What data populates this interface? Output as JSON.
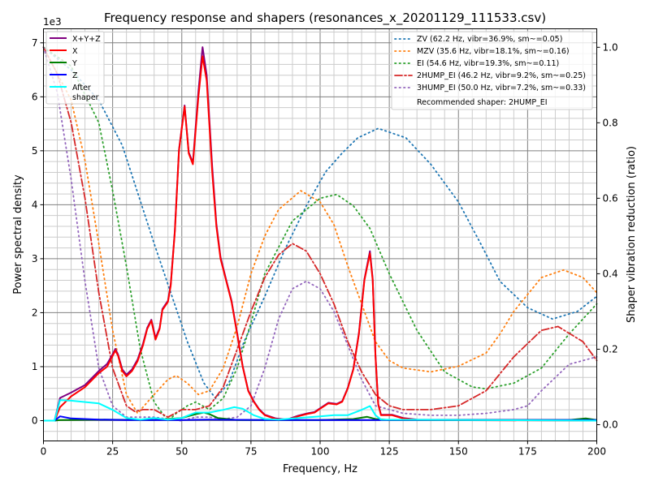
{
  "chart_data": {
    "type": "line",
    "title": "Frequency response and shapers (resonances_x_20201129_111533.csv)",
    "xlabel": "Frequency, Hz",
    "ylabel": "Power spectral density",
    "y2label": "Shaper vibration reduction (ratio)",
    "y_multiplier": "1e3",
    "xlim": [
      0,
      200
    ],
    "ylim": [
      -0.376,
      7.26
    ],
    "y2lim": [
      -0.043,
      1.049
    ],
    "xticks": [
      0,
      25,
      50,
      75,
      100,
      125,
      150,
      175,
      200
    ],
    "yticks": [
      0,
      1,
      2,
      3,
      4,
      5,
      6,
      7
    ],
    "y2ticks": [
      0.0,
      0.2,
      0.4,
      0.6,
      0.8,
      1.0
    ],
    "grid": true,
    "legend_left_placement": "top-left",
    "legend_right_placement": "top-right",
    "psd_series": [
      {
        "name": "X+Y+Z",
        "color": "#800080",
        "x": [
          0,
          4,
          6,
          10,
          15,
          20,
          23,
          25,
          26,
          27,
          28.5,
          30,
          32,
          34,
          36,
          37.5,
          39,
          40.5,
          42,
          43,
          45,
          46,
          47.5,
          49,
          51,
          52.5,
          54,
          56,
          57.5,
          59,
          61,
          62.5,
          64,
          66,
          68,
          70,
          72,
          74,
          76,
          78,
          80,
          84,
          88,
          92,
          95,
          98,
          100,
          103,
          106,
          108,
          110,
          112,
          114,
          116,
          118,
          119,
          120,
          121,
          122,
          124,
          126,
          130,
          135,
          200
        ],
        "y": [
          0,
          0,
          0.42,
          0.52,
          0.66,
          0.92,
          1.05,
          1.23,
          1.33,
          1.22,
          0.95,
          0.85,
          0.95,
          1.13,
          1.43,
          1.72,
          1.87,
          1.53,
          1.72,
          2.07,
          2.22,
          2.52,
          3.52,
          5.02,
          5.84,
          4.97,
          4.78,
          6.1,
          6.92,
          6.4,
          4.7,
          3.65,
          3.03,
          2.62,
          2.22,
          1.62,
          1.01,
          0.56,
          0.36,
          0.21,
          0.11,
          0.04,
          0.02,
          0.09,
          0.13,
          0.16,
          0.23,
          0.33,
          0.31,
          0.36,
          0.61,
          0.96,
          1.62,
          2.62,
          3.14,
          2.63,
          1.22,
          0.31,
          0.11,
          0.11,
          0.11,
          0.05,
          0.02,
          0.01
        ]
      },
      {
        "name": "X",
        "color": "#ff0000",
        "x": [
          0,
          4,
          6,
          10,
          15,
          20,
          23,
          25,
          26,
          27,
          28.5,
          30,
          32,
          34,
          36,
          37.5,
          39,
          40.5,
          42,
          43,
          45,
          46,
          47.5,
          49,
          51,
          52.5,
          54,
          56,
          57.5,
          59,
          61,
          62.5,
          64,
          66,
          68,
          70,
          72,
          74,
          76,
          78,
          80,
          84,
          88,
          92,
          95,
          98,
          100,
          103,
          106,
          108,
          110,
          112,
          114,
          116,
          118,
          119,
          120,
          121,
          122,
          124,
          126,
          130,
          135,
          200
        ],
        "y": [
          0,
          0,
          0.25,
          0.45,
          0.62,
          0.88,
          1.0,
          1.2,
          1.3,
          1.2,
          0.92,
          0.82,
          0.92,
          1.1,
          1.4,
          1.7,
          1.85,
          1.5,
          1.7,
          2.05,
          2.2,
          2.5,
          3.5,
          5.0,
          5.82,
          4.95,
          4.75,
          6.0,
          6.75,
          6.3,
          4.6,
          3.6,
          3.0,
          2.6,
          2.2,
          1.6,
          1.0,
          0.55,
          0.35,
          0.2,
          0.1,
          0.03,
          0.01,
          0.08,
          0.12,
          0.15,
          0.22,
          0.32,
          0.3,
          0.35,
          0.6,
          0.95,
          1.6,
          2.6,
          3.1,
          2.6,
          1.2,
          0.3,
          0.1,
          0.1,
          0.1,
          0.04,
          0.01,
          0
        ]
      },
      {
        "name": "Y",
        "color": "#008000",
        "x": [
          0,
          4,
          6,
          20,
          40,
          50,
          55,
          58,
          60,
          63,
          70,
          100,
          112,
          117,
          120,
          125,
          190,
          196,
          200
        ],
        "y": [
          0,
          0,
          0.01,
          0.02,
          0.01,
          0.05,
          0.12,
          0.15,
          0.12,
          0.05,
          0.01,
          0.01,
          0.03,
          0.07,
          0.03,
          0.01,
          0.01,
          0.04,
          0.01
        ]
      },
      {
        "name": "Z",
        "color": "#0000ff",
        "x": [
          0,
          4,
          6,
          10,
          20,
          30,
          50,
          60,
          80,
          200
        ],
        "y": [
          0,
          0,
          0.08,
          0.04,
          0.02,
          0.01,
          0.01,
          0.02,
          0.01,
          0.01
        ]
      },
      {
        "name": "After\nshaper",
        "color": "#00ffff",
        "x": [
          0,
          4,
          6,
          10,
          20,
          25,
          30,
          35,
          40,
          45,
          50,
          55,
          60,
          65,
          69,
          72,
          76,
          80,
          85,
          95,
          100,
          105,
          110,
          115,
          118,
          120,
          122,
          200
        ],
        "y": [
          0,
          0,
          0.38,
          0.37,
          0.32,
          0.2,
          0.05,
          0.02,
          0.05,
          0.02,
          0.05,
          0.15,
          0.15,
          0.2,
          0.25,
          0.22,
          0.1,
          0.03,
          0.02,
          0.06,
          0.08,
          0.1,
          0.1,
          0.2,
          0.27,
          0.1,
          0.02,
          0
        ]
      }
    ],
    "shaper_series": [
      {
        "name": "ZV (62.2 Hz, vibr=36.9%, sm~=0.05)",
        "color": "#1f77b4",
        "dash": "dotted",
        "x": [
          0,
          10,
          20,
          28.5,
          40,
          52,
          58,
          62.2,
          67,
          72.5,
          80,
          87,
          95,
          102,
          108,
          113.6,
          121,
          131,
          140,
          150,
          158,
          165,
          175,
          184,
          193,
          200
        ],
        "y": [
          1.0,
          0.94,
          0.86,
          0.74,
          0.48,
          0.22,
          0.11,
          0.07,
          0.11,
          0.22,
          0.34,
          0.46,
          0.58,
          0.67,
          0.72,
          0.76,
          0.785,
          0.76,
          0.69,
          0.59,
          0.48,
          0.38,
          0.31,
          0.28,
          0.3,
          0.34
        ]
      },
      {
        "name": "MZV (35.6 Hz, vibr=18.1%, sm~=0.16)",
        "color": "#ff7f0e",
        "dash": "dotted",
        "x": [
          0,
          10,
          15,
          20,
          25,
          30,
          34,
          40,
          45,
          48,
          52,
          56,
          60,
          65,
          70,
          75,
          80,
          85,
          93,
          100,
          105,
          110,
          115,
          120,
          125,
          130,
          140,
          150,
          160,
          165,
          170,
          180,
          188,
          195,
          200
        ],
        "y": [
          1.0,
          0.86,
          0.7,
          0.48,
          0.25,
          0.08,
          0.03,
          0.08,
          0.12,
          0.13,
          0.11,
          0.08,
          0.09,
          0.15,
          0.26,
          0.4,
          0.5,
          0.57,
          0.62,
          0.59,
          0.53,
          0.42,
          0.32,
          0.22,
          0.17,
          0.15,
          0.14,
          0.155,
          0.19,
          0.24,
          0.3,
          0.39,
          0.41,
          0.39,
          0.35
        ]
      },
      {
        "name": "EI (54.6 Hz, vibr=19.3%, sm~=0.11)",
        "color": "#2ca02c",
        "dash": "dotted",
        "x": [
          0,
          10,
          20,
          25,
          30,
          35,
          40,
          45,
          48,
          52,
          55,
          60,
          65,
          70,
          75,
          80,
          90,
          100,
          106,
          112,
          118,
          125,
          135,
          145,
          155,
          160,
          170,
          180,
          190,
          200
        ],
        "y": [
          1.0,
          0.95,
          0.8,
          0.62,
          0.42,
          0.2,
          0.06,
          0.01,
          0.03,
          0.05,
          0.06,
          0.04,
          0.07,
          0.15,
          0.27,
          0.4,
          0.54,
          0.6,
          0.61,
          0.58,
          0.52,
          0.4,
          0.25,
          0.14,
          0.1,
          0.095,
          0.11,
          0.15,
          0.24,
          0.32
        ]
      },
      {
        "name": "2HUMP_EI (46.2 Hz, vibr=9.2%, sm~=0.25)",
        "color": "#d62728",
        "dash": "dashdot",
        "x": [
          0,
          5,
          10,
          15,
          20,
          25,
          30,
          33,
          36,
          40,
          45,
          50,
          55,
          60,
          65,
          70,
          75,
          80,
          85,
          90,
          95,
          100,
          105,
          110,
          115,
          120,
          125,
          130,
          140,
          150,
          160,
          170,
          180,
          186,
          195,
          200
        ],
        "y": [
          1.0,
          0.93,
          0.8,
          0.6,
          0.35,
          0.15,
          0.05,
          0.035,
          0.04,
          0.04,
          0.02,
          0.04,
          0.04,
          0.05,
          0.1,
          0.2,
          0.3,
          0.39,
          0.45,
          0.48,
          0.46,
          0.4,
          0.32,
          0.22,
          0.14,
          0.08,
          0.05,
          0.04,
          0.04,
          0.05,
          0.09,
          0.18,
          0.25,
          0.26,
          0.22,
          0.17
        ]
      },
      {
        "name": "3HUMP_EI (50.0 Hz, vibr=7.2%, sm~=0.33)",
        "color": "#9467bd",
        "dash": "dotted",
        "x": [
          0,
          5,
          10,
          15,
          20,
          25,
          30,
          35,
          40,
          45,
          50,
          55,
          60,
          65,
          70,
          75,
          80,
          85,
          90,
          95,
          100,
          105,
          110,
          115,
          120,
          130,
          140,
          150,
          160,
          170,
          175,
          180,
          190,
          200
        ],
        "y": [
          1.0,
          0.88,
          0.65,
          0.38,
          0.15,
          0.05,
          0.02,
          0.02,
          0.02,
          0.015,
          0.01,
          0.02,
          0.02,
          0.015,
          0.02,
          0.05,
          0.15,
          0.28,
          0.36,
          0.38,
          0.36,
          0.3,
          0.21,
          0.12,
          0.05,
          0.03,
          0.025,
          0.025,
          0.03,
          0.04,
          0.05,
          0.09,
          0.16,
          0.18
        ]
      }
    ],
    "recommended_text": "Recommended shaper: 2HUMP_EI"
  }
}
